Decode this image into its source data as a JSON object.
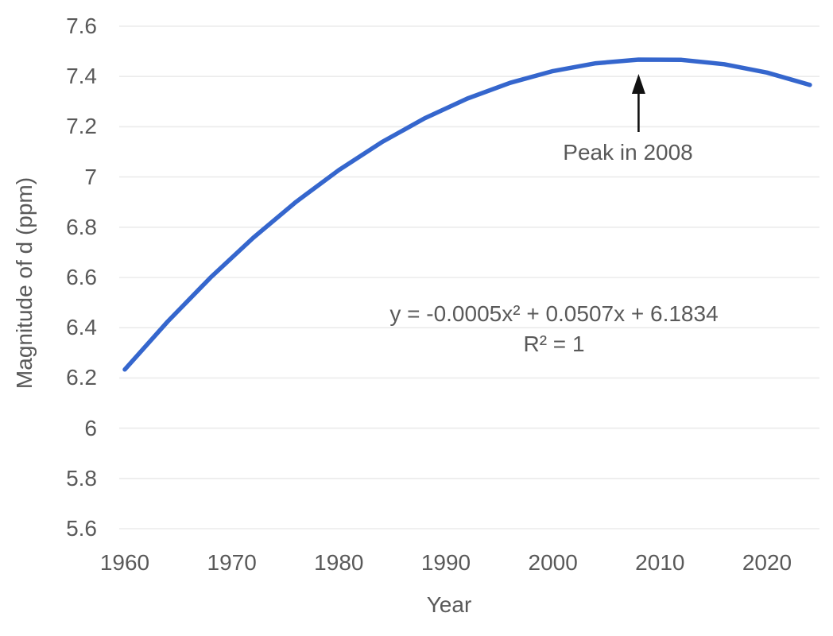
{
  "chart_data": {
    "type": "line",
    "title": "",
    "xlabel": "Year",
    "ylabel": "Magnitude of d (ppm)",
    "x": [
      1960,
      1964,
      1968,
      1972,
      1976,
      1980,
      1984,
      1988,
      1992,
      1996,
      2000,
      2004,
      2008,
      2012,
      2016,
      2020,
      2024
    ],
    "series": [
      {
        "name": "Magnitude of d",
        "values": [
          6.2336,
          6.4244,
          6.5992,
          6.758,
          6.9008,
          7.0276,
          7.1384,
          7.2332,
          7.312,
          7.3748,
          7.4216,
          7.4524,
          7.4672,
          7.466,
          7.4488,
          7.4156,
          7.3664
        ]
      }
    ],
    "x_ticks": [
      "1960",
      "1970",
      "1980",
      "1990",
      "2000",
      "2010",
      "2020"
    ],
    "y_ticks": [
      "7.6",
      "7.4",
      "7.2",
      "7",
      "6.8",
      "6.6",
      "6.4",
      "6.2",
      "6",
      "5.8",
      "5.6"
    ],
    "xlim": [
      1960,
      2024
    ],
    "ylim": [
      5.6,
      7.6
    ],
    "grid": "horizontal",
    "legend": "none",
    "annotations": {
      "peak": {
        "label": "Peak in 2008",
        "arrow_year": 2008
      },
      "equation": "y = -0.0005x² + 0.0507x + 6.1834",
      "r_squared": "R² = 1"
    }
  },
  "colors": {
    "line": "#3566cd",
    "text": "#595959",
    "grid": "#ebebeb",
    "arrow": "#111111",
    "background": "#ffffff"
  }
}
